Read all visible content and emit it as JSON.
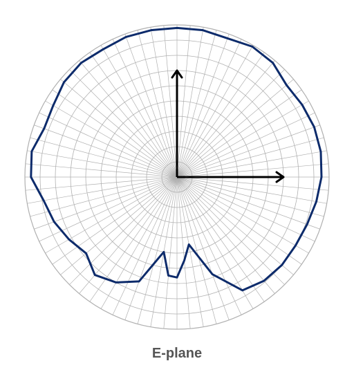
{
  "caption": "E-plane",
  "colors": {
    "grid": "#b0b0b0",
    "trace": "#0d2b6b",
    "axes": "#000000",
    "caption": "#555555"
  },
  "chart_data": {
    "type": "line",
    "projection": "polar",
    "title": "E-plane",
    "angle_unit": "deg",
    "angle_zero": "top",
    "angle_direction": "clockwise",
    "r_range": [
      0,
      1
    ],
    "rings": 10,
    "spokes_deg_step": 5,
    "grid": true,
    "series": [
      {
        "angle_deg": [
          0,
          10,
          20,
          30,
          40,
          50,
          60,
          70,
          80,
          90,
          100,
          110,
          120,
          130,
          140,
          150,
          160,
          165,
          170,
          175,
          180,
          185,
          190,
          193,
          200,
          210,
          220,
          230,
          240,
          250,
          260,
          270,
          280,
          290,
          300,
          310,
          320,
          330,
          340,
          350
        ],
        "r": [
          0.98,
          0.98,
          0.97,
          0.99,
          0.98,
          0.94,
          0.95,
          0.96,
          0.96,
          0.95,
          0.93,
          0.91,
          0.9,
          0.9,
          0.89,
          0.86,
          0.68,
          0.54,
          0.45,
          0.55,
          0.66,
          0.65,
          0.5,
          0.55,
          0.73,
          0.8,
          0.84,
          0.78,
          0.82,
          0.86,
          0.89,
          0.96,
          0.97,
          0.93,
          0.94,
          0.97,
          0.98,
          0.97,
          0.98,
          0.98
        ]
      }
    ],
    "arrows": [
      {
        "direction_deg": 0,
        "length": 0.7
      },
      {
        "direction_deg": 90,
        "length": 0.7
      }
    ]
  }
}
